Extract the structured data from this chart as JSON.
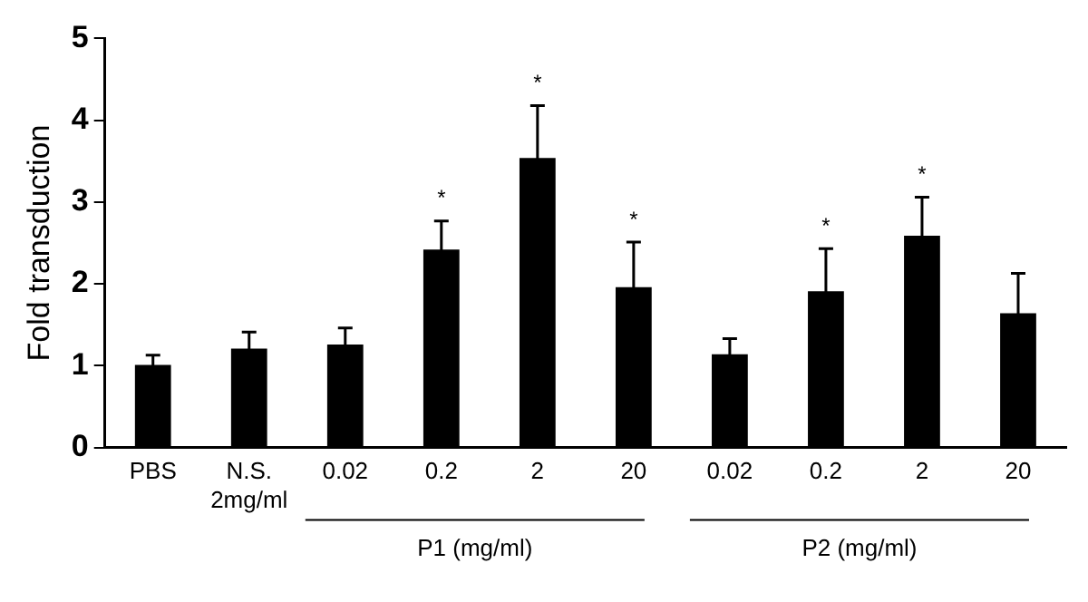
{
  "chart_data": {
    "type": "bar",
    "ylabel": "Fold transduction",
    "categories": [
      "PBS",
      "N.S.\n2mg/ml",
      "0.02",
      "0.2",
      "2",
      "20",
      "0.02",
      "0.2",
      "2",
      "20"
    ],
    "values": [
      1.01,
      1.21,
      1.26,
      2.42,
      3.54,
      1.96,
      1.14,
      1.91,
      2.59,
      1.64
    ],
    "errors": [
      0.12,
      0.2,
      0.2,
      0.35,
      0.64,
      0.55,
      0.19,
      0.52,
      0.47,
      0.49
    ],
    "value_labels": [
      null,
      null,
      null,
      "*",
      "*",
      "*",
      null,
      "*",
      "*",
      null
    ],
    "color": "#000000",
    "ylim": [
      0,
      5
    ],
    "yticks": [
      0,
      1,
      2,
      3,
      4,
      5
    ],
    "grid": false,
    "legend": false,
    "annotations": [
      "P1 (mg/ml)",
      "P2 (mg/ml)"
    ]
  }
}
